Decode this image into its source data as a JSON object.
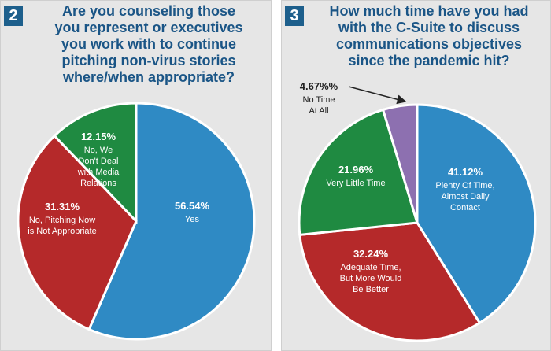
{
  "colors": {
    "blue": "#2f8ac4",
    "red": "#b5292a",
    "green": "#1f8a41",
    "purple": "#8d70b0",
    "badge": "#1d5f8c",
    "title": "#1a5586"
  },
  "chart_data": [
    {
      "type": "pie",
      "badge": "2",
      "title_lines": [
        "Are you counseling those",
        "you represent or executives",
        "you work with to continue",
        "pitching non-virus stories",
        "where/when appropriate?"
      ],
      "slices": [
        {
          "value": 56.54,
          "pct_label": "56.54%",
          "label_lines": [
            "Yes"
          ],
          "color": "#2f8ac4"
        },
        {
          "value": 31.31,
          "pct_label": "31.31%",
          "label_lines": [
            "No, Pitching Now",
            "is Not Appropriate"
          ],
          "color": "#b5292a"
        },
        {
          "value": 12.15,
          "pct_label": "12.15%",
          "label_lines": [
            "No, We",
            "Don't Deal",
            "with Media",
            "Relations"
          ],
          "color": "#1f8a41"
        }
      ]
    },
    {
      "type": "pie",
      "badge": "3",
      "title_lines": [
        "How much time have you had",
        "with the C-Suite to discuss",
        "communications objectives",
        "since the pandemic hit?"
      ],
      "slices": [
        {
          "value": 41.12,
          "pct_label": "41.12%",
          "label_lines": [
            "Plenty Of Time,",
            "Almost Daily",
            "Contact"
          ],
          "color": "#2f8ac4"
        },
        {
          "value": 32.24,
          "pct_label": "32.24%",
          "label_lines": [
            "Adequate Time,",
            "But More Would",
            "Be Better"
          ],
          "color": "#b5292a"
        },
        {
          "value": 21.96,
          "pct_label": "21.96%",
          "label_lines": [
            "Very Little Time"
          ],
          "color": "#1f8a41"
        },
        {
          "value": 4.67,
          "pct_label": "4.67%%",
          "label_lines": [
            "No Time",
            "At All"
          ],
          "color": "#8d70b0"
        }
      ]
    }
  ]
}
